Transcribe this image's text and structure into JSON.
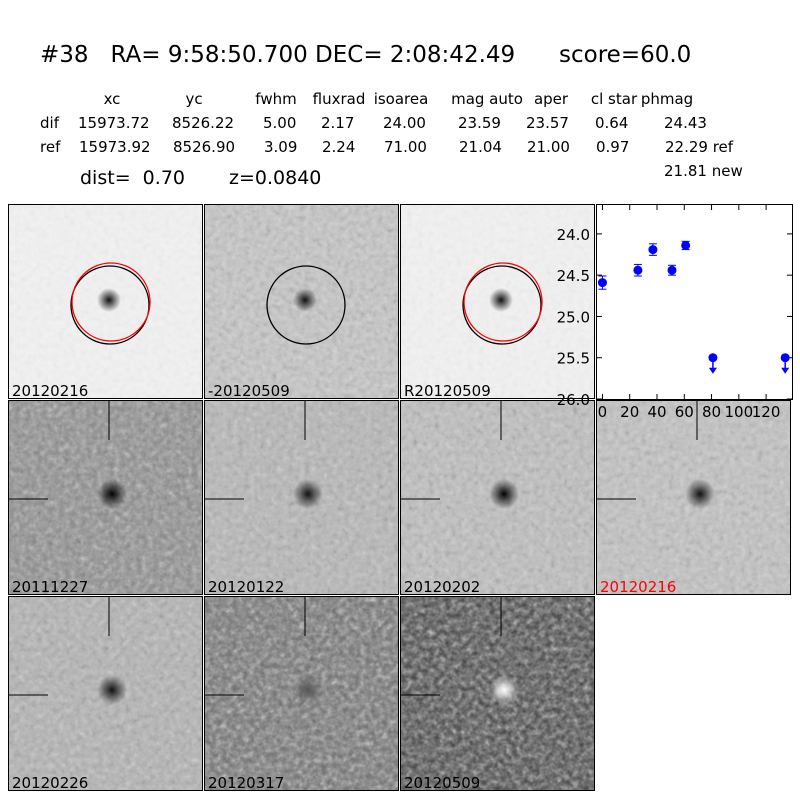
{
  "header": {
    "title": "#38   RA= 9:58:50.700 DEC= 2:08:42.49      score=60.0"
  },
  "table": {
    "columns": [
      "xc",
      "yc",
      "fwhm",
      "fluxrad",
      "isoarea",
      "mag auto",
      "aper",
      "cl star",
      "phmag"
    ],
    "rows": [
      {
        "label": "dif",
        "values": [
          "15973.72",
          "8526.22",
          "5.00",
          "2.17",
          "24.00",
          "23.59",
          "23.57",
          "0.64",
          "24.43"
        ]
      },
      {
        "label": "ref",
        "values": [
          "15973.92",
          "8526.90",
          "3.09",
          "2.24",
          "71.00",
          "21.04",
          "21.00",
          "0.97",
          "22.29 ref"
        ]
      }
    ],
    "extra_phmag": "21.81 new",
    "dist": "dist=  0.70",
    "z": "z=0.0840"
  },
  "panels": [
    {
      "label": "20120216",
      "bg": "#f2f2f2",
      "blob": "#111",
      "noise": 0.15,
      "circles": true,
      "red": true,
      "crosshair": false
    },
    {
      "label": "-20120509",
      "bg": "#c8c8c8",
      "blob": "#111",
      "noise": 0.6,
      "circles": true,
      "red": false,
      "crosshair": false
    },
    {
      "label": "R20120509",
      "bg": "#f2f2f2",
      "blob": "#111",
      "noise": 0.15,
      "circles": true,
      "red": true,
      "crosshair": false
    },
    {
      "label": "20111227",
      "bg": "#8a8a8a",
      "blob": "#000",
      "noise": 0.8,
      "circles": false,
      "crosshair": true
    },
    {
      "label": "20120122",
      "bg": "#b8b8b8",
      "blob": "#111",
      "noise": 0.6,
      "circles": false,
      "crosshair": true
    },
    {
      "label": "20120202",
      "bg": "#c0c0c0",
      "blob": "#000",
      "noise": 0.6,
      "circles": false,
      "crosshair": true
    },
    {
      "label": "20120216",
      "bg": "#c4c4c4",
      "blob": "#111",
      "noise": 0.55,
      "circles": false,
      "crosshair": true,
      "label_color": "#ff0000"
    },
    {
      "label": "20120226",
      "bg": "#b4b4b4",
      "blob": "#111",
      "noise": 0.6,
      "circles": false,
      "crosshair": true
    },
    {
      "label": "20120317",
      "bg": "#6a6a6a",
      "blob": "#555",
      "noise": 0.9,
      "circles": false,
      "crosshair": true
    },
    {
      "label": "20120509",
      "bg": "#3a3a3a",
      "blob": "#fff",
      "noise": 0.9,
      "circles": false,
      "crosshair": true
    }
  ],
  "chart_data": {
    "type": "scatter",
    "xlim": [
      -4,
      139
    ],
    "ylim": [
      26.0,
      23.65
    ],
    "xticks": [
      "0",
      "20",
      "40",
      "60",
      "80",
      "100",
      "120"
    ],
    "yticks": [
      "24.0",
      "24.5",
      "25.0",
      "25.5",
      "26.0"
    ],
    "color": "#0000ff",
    "points": [
      {
        "x": 0,
        "y": 24.59,
        "err": 0.08
      },
      {
        "x": 26,
        "y": 24.44,
        "err": 0.07
      },
      {
        "x": 37,
        "y": 24.19,
        "err": 0.07
      },
      {
        "x": 51,
        "y": 24.44,
        "err": 0.06
      },
      {
        "x": 61,
        "y": 24.14,
        "err": 0.05
      }
    ],
    "upper_limits": [
      {
        "x": 81,
        "y": 25.5
      },
      {
        "x": 134,
        "y": 25.5
      }
    ]
  }
}
